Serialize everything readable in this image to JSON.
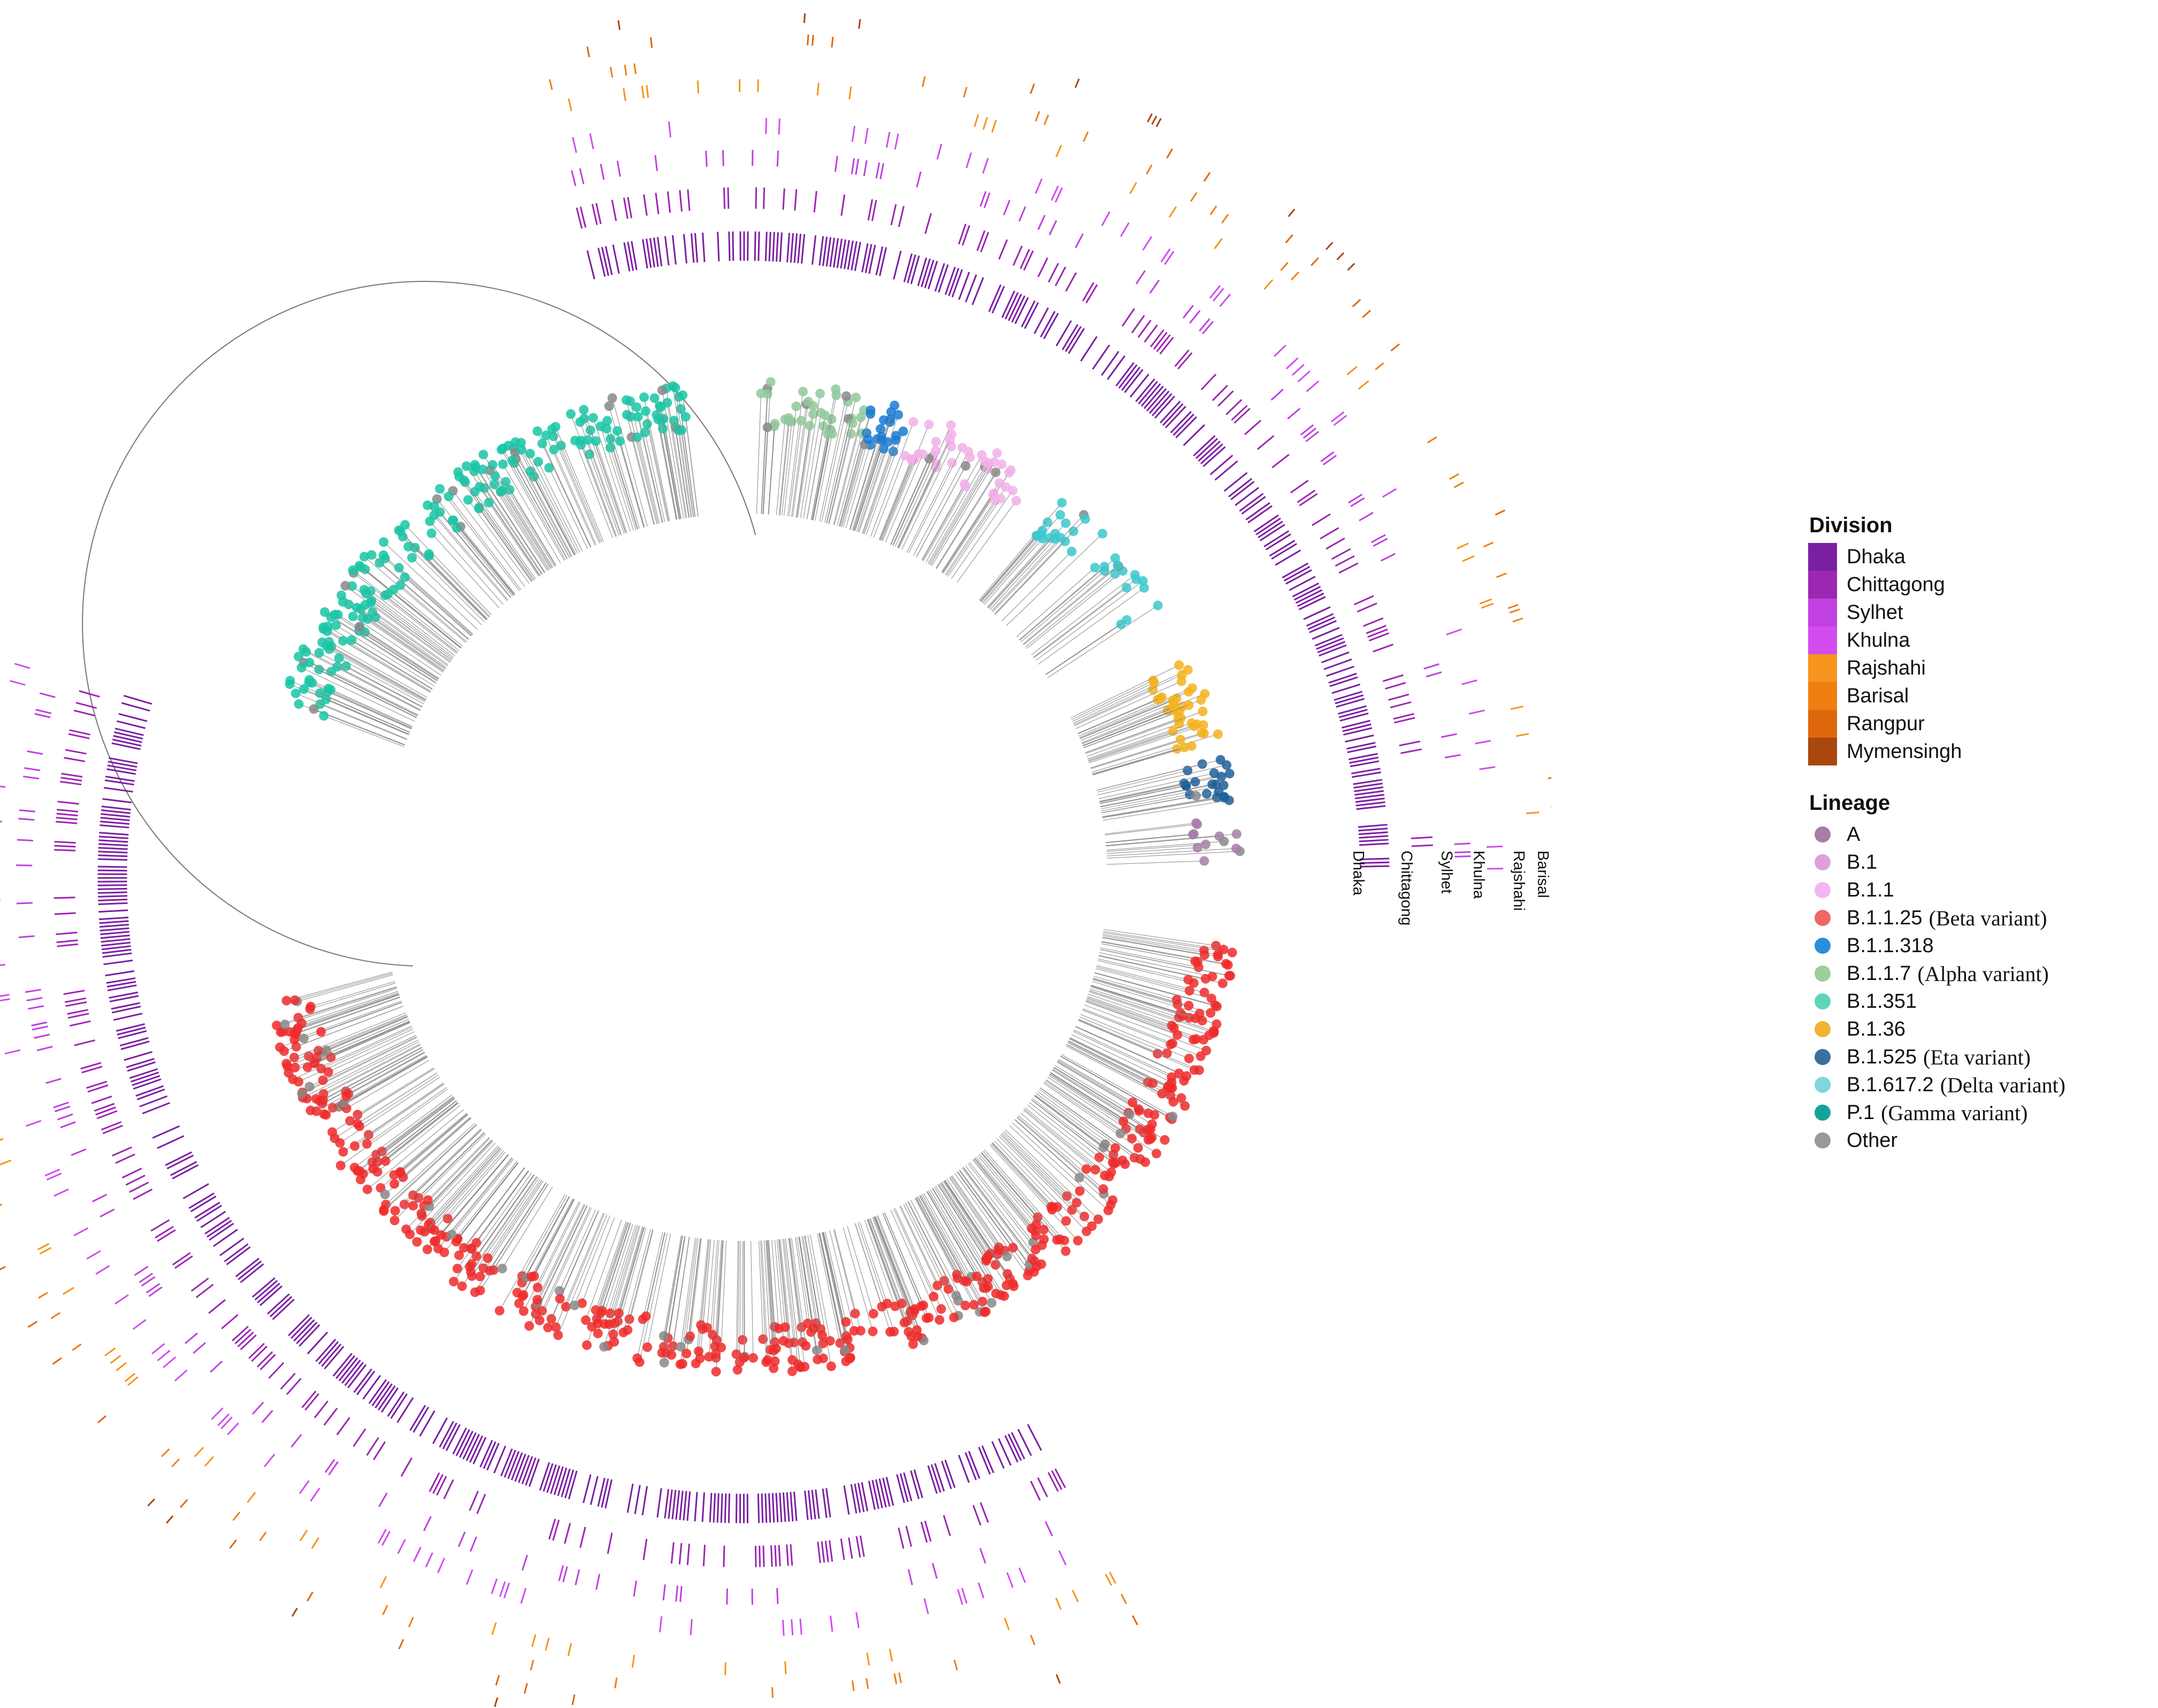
{
  "chart_data": {
    "type": "circular-phylogenetic-tree",
    "rings": [
      "Dhaka",
      "Chittagong",
      "Sylhet",
      "Khulna",
      "Rajshahi",
      "Barisal",
      "Rangpur",
      "Mymensingh"
    ],
    "division_legend": {
      "title": "Division",
      "items": [
        {
          "label": "Dhaka",
          "color": "#7b1fa2"
        },
        {
          "label": "Chittagong",
          "color": "#9c27b0"
        },
        {
          "label": "Sylhet",
          "color": "#c040e0"
        },
        {
          "label": "Khulna",
          "color": "#d24cf0"
        },
        {
          "label": "Rajshahi",
          "color": "#f7941d"
        },
        {
          "label": "Barisal",
          "color": "#f07f12"
        },
        {
          "label": "Rangpur",
          "color": "#e0680c"
        },
        {
          "label": "Mymensingh",
          "color": "#a9470f"
        }
      ]
    },
    "lineage_legend": {
      "title": "Lineage",
      "items": [
        {
          "label": "A",
          "note": "",
          "color": "#a67ea6"
        },
        {
          "label": "B.1",
          "note": "",
          "color": "#dda0dd"
        },
        {
          "label": "B.1.1",
          "note": "",
          "color": "#f4b6f0"
        },
        {
          "label": "B.1.1.25",
          "note": "(Beta variant)",
          "color": "#ee6666"
        },
        {
          "label": "B.1.1.318",
          "note": "",
          "color": "#2a8fd6"
        },
        {
          "label": "B.1.1.7",
          "note": "(Alpha variant)",
          "color": "#9bcf9b"
        },
        {
          "label": "B.1.351",
          "note": "",
          "color": "#5fd5b5"
        },
        {
          "label": "B.1.36",
          "note": "",
          "color": "#f2b233"
        },
        {
          "label": "B.1.525",
          "note": "(Eta variant)",
          "color": "#3a6fa0"
        },
        {
          "label": "B.1.617.2",
          "note": "(Delta variant)",
          "color": "#7fd6dc"
        },
        {
          "label": "P.1",
          "note": "(Gamma variant)",
          "color": "#14a39a"
        },
        {
          "label": "Other",
          "note": "",
          "color": "#999999"
        }
      ]
    },
    "clades": [
      {
        "lineage": "B.1.1.25",
        "color": "#f02a2a",
        "from_deg": 98,
        "to_deg": 255,
        "tips": 520
      },
      {
        "lineage": "B.1.351",
        "color": "#19c6a4",
        "from_deg": 290,
        "to_deg": 353,
        "tips": 210
      },
      {
        "lineage": "B.1.1.7",
        "color": "#8fc99b",
        "from_deg": 2,
        "to_deg": 15,
        "tips": 40
      },
      {
        "lineage": "B.1.1.318",
        "color": "#1a7bd4",
        "from_deg": 15,
        "to_deg": 20,
        "tips": 22
      },
      {
        "lineage": "B.1.1",
        "color": "#f2b0e8",
        "from_deg": 20,
        "to_deg": 36,
        "tips": 45
      },
      {
        "lineage": "B.1.617.2",
        "color": "#3cc8cc",
        "from_deg": 40,
        "to_deg": 57,
        "tips": 35
      },
      {
        "lineage": "B.1.36",
        "color": "#f4b320",
        "from_deg": 64,
        "to_deg": 76,
        "tips": 40
      },
      {
        "lineage": "B.1.525",
        "color": "#1f5f9a",
        "from_deg": 76,
        "to_deg": 81,
        "tips": 22
      },
      {
        "lineage": "A",
        "color": "#a67ea6",
        "from_deg": 83,
        "to_deg": 88,
        "tips": 12
      }
    ]
  }
}
